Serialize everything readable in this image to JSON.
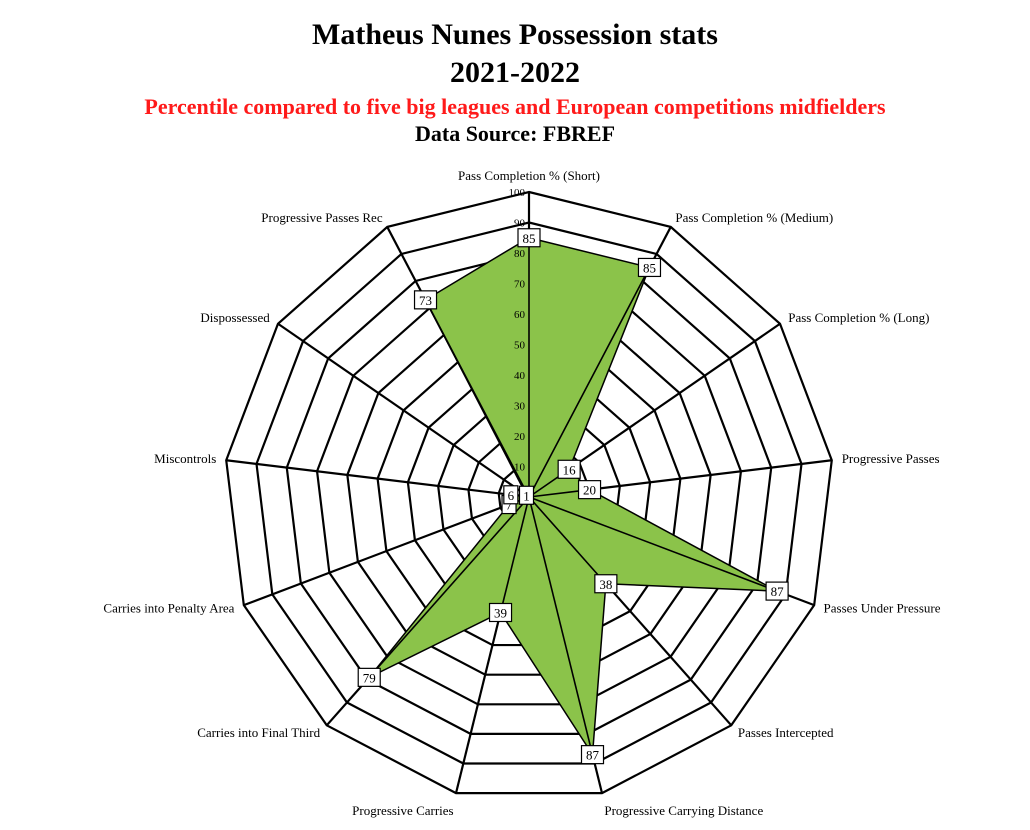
{
  "header": {
    "title_line1": "Matheus Nunes Possession stats",
    "title_line2": "2021-2022",
    "subtitle": "Percentile compared to five big leagues and European competitions midfielders",
    "source": "Data Source: FBREF"
  },
  "chart_data": {
    "type": "radar",
    "title": "Matheus Nunes Possession stats 2021-2022",
    "subtitle": "Percentile compared to five big leagues and European competitions midfielders",
    "range": [
      0,
      100
    ],
    "ticks": [
      10,
      20,
      30,
      40,
      50,
      60,
      70,
      80,
      90,
      100
    ],
    "categories": [
      "Pass Completion % (Short)",
      "Pass Completion % (Medium)",
      "Pass Completion % (Long)",
      "Progressive Passes",
      "Passes Under Pressure",
      "Passes Intercepted",
      "Progressive Carrying Distance",
      "Progressive Carries",
      "Carries into Final Third",
      "Carries into Penalty Area",
      "Miscontrols",
      "Dispossessed",
      "Progressive Passes Rec"
    ],
    "values": [
      85,
      85,
      16,
      20,
      87,
      38,
      87,
      39,
      79,
      7,
      6,
      1,
      73
    ],
    "colors": {
      "fill": "#8bc34a",
      "stroke": "#000000",
      "grid": "#000000"
    }
  }
}
